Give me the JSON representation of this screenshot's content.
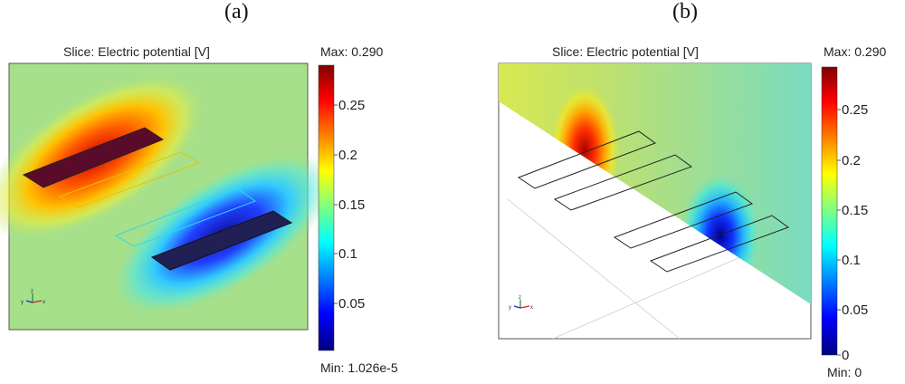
{
  "panels": [
    {
      "label": "(a)",
      "title": "Slice: Electric potential [V]",
      "max_label": "Max: 0.290",
      "min_label": "Min: 1.026e-5",
      "colorbar_ticks": [
        "0.25",
        "0.2",
        "0.15",
        "0.1",
        "0.05"
      ],
      "axis_glyphs": {
        "y": "y",
        "z": "z",
        "x": "x"
      }
    },
    {
      "label": "(b)",
      "title": "Slice: Electric potential [V]",
      "max_label": "Max: 0.290",
      "min_label": "Min: 0",
      "colorbar_ticks": [
        "0.25",
        "0.2",
        "0.15",
        "0.1",
        "0.05",
        "0"
      ],
      "axis_glyphs": {
        "y": "y",
        "z": "z",
        "x": "x"
      }
    }
  ],
  "colors": {
    "background_field": "#a6e08a",
    "high": "#c80000",
    "low": "#1a1aa8",
    "electrode_outline_plain": "#333333"
  }
}
